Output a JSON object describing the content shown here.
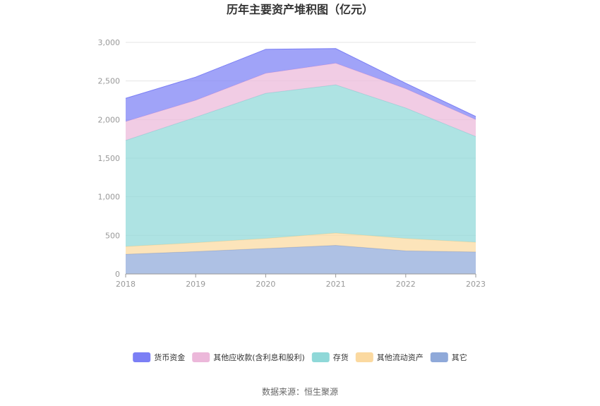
{
  "chart_data": {
    "type": "area",
    "stacked": true,
    "title": "历年主要资产堆积图（亿元）",
    "categories": [
      "2018",
      "2019",
      "2020",
      "2021",
      "2022",
      "2023"
    ],
    "ylim": [
      0,
      3000
    ],
    "yticks": [
      "0",
      "500",
      "1,000",
      "1,500",
      "2,000",
      "2,500",
      "3,000"
    ],
    "ytick_values": [
      0,
      500,
      1000,
      1500,
      2000,
      2500,
      3000
    ],
    "grid": true,
    "legend_position": "bottom",
    "series": [
      {
        "name": "其它",
        "color": "#8fa9d9",
        "values": [
          255,
          290,
          330,
          370,
          300,
          285
        ]
      },
      {
        "name": "其他流动资产",
        "color": "#fbd9a0",
        "values": [
          100,
          115,
          130,
          160,
          160,
          125
        ]
      },
      {
        "name": "存货",
        "color": "#8fd8d8",
        "values": [
          1375,
          1625,
          1880,
          1920,
          1690,
          1370
        ]
      },
      {
        "name": "其他应收款(含利息和股利)",
        "color": "#ecb8da",
        "values": [
          245,
          220,
          260,
          280,
          250,
          220
        ]
      },
      {
        "name": "货币资金",
        "color": "#7b7ff5",
        "values": [
          300,
          300,
          310,
          190,
          70,
          40
        ]
      }
    ],
    "legend_order": [
      "货币资金",
      "其他应收款(含利息和股利)",
      "存货",
      "其他流动资产",
      "其它"
    ]
  },
  "source": "数据来源：恒生聚源"
}
